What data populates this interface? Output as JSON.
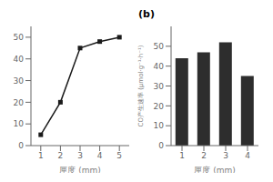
{
  "chart_data": [
    {
      "type": "line",
      "x": [
        1,
        2,
        3,
        4,
        5
      ],
      "values": [
        5,
        20,
        45,
        48,
        50
      ],
      "xlabel": "厘度 (mm)",
      "xlim": [
        0.5,
        5.5
      ],
      "xticks": [
        1,
        2,
        3,
        4,
        5
      ],
      "ylim": [
        0,
        55
      ],
      "yticks": [
        0,
        10,
        20,
        30,
        40,
        50
      ],
      "color": "#1a1a1a",
      "marker": "square",
      "grid": false
    },
    {
      "type": "bar",
      "title": "(b)",
      "categories": [
        "1",
        "2",
        "3",
        "4"
      ],
      "values": [
        44,
        47,
        52,
        35
      ],
      "xlabel": "厘度 (mm)",
      "ylabel": "CO产生速率 (μmol·g⁻¹·h⁻¹)",
      "ylim": [
        0,
        60
      ],
      "yticks": [
        0,
        10,
        20,
        30,
        40,
        50
      ],
      "color": "#2d2d2d",
      "grid": false
    }
  ]
}
